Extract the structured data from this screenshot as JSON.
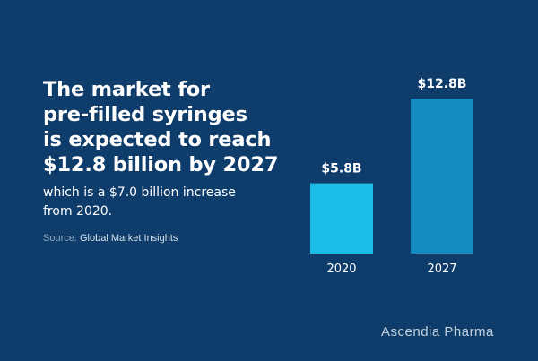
{
  "headline": {
    "lines": [
      "The market for",
      "pre-filled syringes",
      "is expected to reach",
      "$12.8 billion by 2027"
    ]
  },
  "subtext": {
    "lines": [
      "which is a $7.0 billion increase",
      "from 2020."
    ]
  },
  "source": {
    "label": "Source:",
    "value": "Global Market Insights"
  },
  "brand": {
    "logo_text": "Ascendia Pharma"
  },
  "colors": {
    "background": "#0f3d6b",
    "bar_2020": "#1bbde6",
    "bar_2027": "#158cc0"
  },
  "chart_data": {
    "type": "bar",
    "title": "",
    "xlabel": "",
    "ylabel": "",
    "categories": [
      "2020",
      "2027"
    ],
    "values": [
      5.8,
      12.8
    ],
    "data_labels": [
      "$5.8B",
      "$12.8B"
    ],
    "unit": "billion USD",
    "ylim": [
      0,
      12.8
    ],
    "grid": false,
    "legend": "none"
  }
}
